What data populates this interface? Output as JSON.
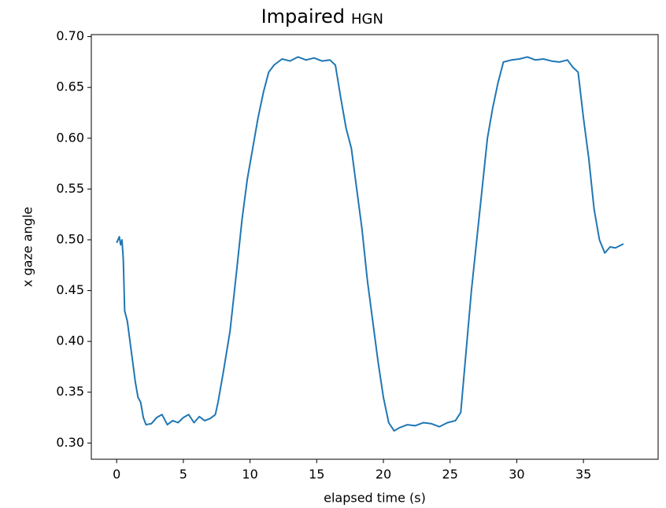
{
  "chart_data": {
    "type": "line",
    "title": "Impaired",
    "subtitle": "HGN",
    "x_label": "elapsed time (s)",
    "y_label": "x gaze angle",
    "x": [
      0,
      0.2,
      0.3,
      0.4,
      0.5,
      0.6,
      0.8,
      1.0,
      1.2,
      1.4,
      1.6,
      1.8,
      2.0,
      2.2,
      2.6,
      3.0,
      3.4,
      3.8,
      4.2,
      4.6,
      5.0,
      5.4,
      5.8,
      6.2,
      6.6,
      7.0,
      7.4,
      7.6,
      8.0,
      8.5,
      9.0,
      9.4,
      9.8,
      10.2,
      10.6,
      11.0,
      11.4,
      11.8,
      12.4,
      13.0,
      13.6,
      14.2,
      14.8,
      15.4,
      16.0,
      16.4,
      16.8,
      17.2,
      17.6,
      18.0,
      18.4,
      18.8,
      19.2,
      19.6,
      20.0,
      20.4,
      20.8,
      21.2,
      21.8,
      22.4,
      23.0,
      23.6,
      24.2,
      24.8,
      25.4,
      25.8,
      26.2,
      26.6,
      27.0,
      27.4,
      27.8,
      28.2,
      28.6,
      29.0,
      29.6,
      30.2,
      30.8,
      31.4,
      32.0,
      32.6,
      33.2,
      33.8,
      34.2,
      34.6,
      35.0,
      35.4,
      35.8,
      36.2,
      36.6,
      37.0,
      37.4,
      38.0
    ],
    "series": [
      {
        "name": "x gaze angle",
        "color": "#1f77b4",
        "values": [
          0.497,
          0.503,
          0.495,
          0.5,
          0.48,
          0.43,
          0.42,
          0.4,
          0.38,
          0.36,
          0.345,
          0.34,
          0.325,
          0.318,
          0.319,
          0.325,
          0.328,
          0.318,
          0.322,
          0.32,
          0.325,
          0.328,
          0.32,
          0.326,
          0.322,
          0.324,
          0.328,
          0.34,
          0.37,
          0.41,
          0.47,
          0.52,
          0.56,
          0.59,
          0.62,
          0.645,
          0.665,
          0.672,
          0.678,
          0.676,
          0.68,
          0.677,
          0.679,
          0.676,
          0.677,
          0.672,
          0.64,
          0.61,
          0.59,
          0.55,
          0.51,
          0.46,
          0.42,
          0.38,
          0.345,
          0.32,
          0.312,
          0.315,
          0.318,
          0.317,
          0.32,
          0.319,
          0.316,
          0.32,
          0.322,
          0.33,
          0.39,
          0.45,
          0.5,
          0.55,
          0.6,
          0.63,
          0.655,
          0.675,
          0.677,
          0.678,
          0.68,
          0.677,
          0.678,
          0.676,
          0.675,
          0.677,
          0.67,
          0.665,
          0.62,
          0.58,
          0.53,
          0.5,
          0.487,
          0.493,
          0.492,
          0.496
        ]
      }
    ],
    "xlim": [
      -1.9,
      40.6
    ],
    "ylim": [
      0.284,
      0.702
    ],
    "xticks": [
      0,
      5,
      10,
      15,
      20,
      25,
      30,
      35
    ],
    "yticks": [
      {
        "value": 0.3,
        "label": "0.30"
      },
      {
        "value": 0.35,
        "label": "0.35"
      },
      {
        "value": 0.4,
        "label": "0.40"
      },
      {
        "value": 0.45,
        "label": "0.45"
      },
      {
        "value": 0.5,
        "label": "0.50"
      },
      {
        "value": 0.55,
        "label": "0.55"
      },
      {
        "value": 0.6,
        "label": "0.60"
      },
      {
        "value": 0.65,
        "label": "0.65"
      },
      {
        "value": 0.7,
        "label": "0.70"
      }
    ]
  }
}
